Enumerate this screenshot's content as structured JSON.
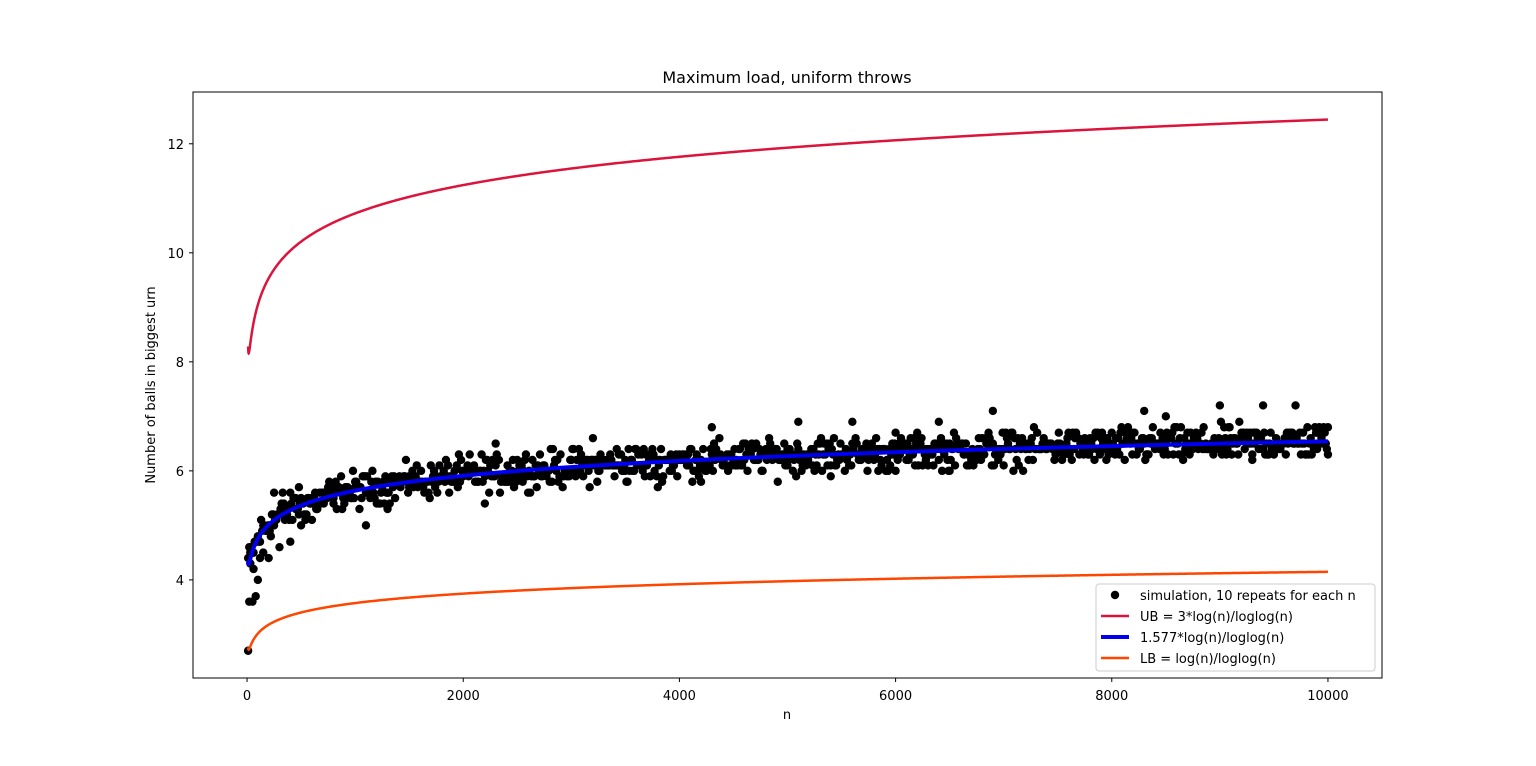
{
  "chart_data": {
    "type": "scatter",
    "title": "Maximum load, uniform throws",
    "xlabel": "n",
    "ylabel": "Number of balls in biggest urn",
    "xlim": [
      -500,
      10500
    ],
    "ylim": [
      2.2,
      12.95
    ],
    "xticks": [
      0,
      2000,
      4000,
      6000,
      8000,
      10000
    ],
    "yticks": [
      4,
      6,
      8,
      10,
      12
    ],
    "grid": false,
    "legend_position": "lower-right",
    "series": [
      {
        "name": "simulation, 10 repeats for each n",
        "kind": "scatter",
        "color": "#000000",
        "description": "Simulated maximum load, about 1000 points for n from 10 to 10000",
        "sample_points": [
          [
            10,
            2.7
          ],
          [
            20,
            3.6
          ],
          [
            30,
            4.3
          ],
          [
            50,
            3.6
          ],
          [
            60,
            4.2
          ],
          [
            80,
            3.7
          ],
          [
            100,
            4.0
          ],
          [
            120,
            4.4
          ],
          [
            150,
            4.5
          ],
          [
            200,
            4.4
          ],
          [
            230,
            5.2
          ],
          [
            250,
            5.6
          ],
          [
            300,
            4.6
          ],
          [
            330,
            5.6
          ],
          [
            400,
            4.7
          ],
          [
            450,
            5.5
          ],
          [
            480,
            5.7
          ],
          [
            500,
            5.0
          ],
          [
            600,
            5.1
          ],
          [
            700,
            5.6
          ],
          [
            800,
            5.4
          ],
          [
            1000,
            5.8
          ],
          [
            1100,
            5.0
          ],
          [
            1300,
            5.3
          ],
          [
            1500,
            5.9
          ],
          [
            2000,
            5.9
          ],
          [
            2200,
            5.4
          ],
          [
            2300,
            6.5
          ],
          [
            2500,
            6.2
          ],
          [
            3000,
            6.2
          ],
          [
            3200,
            6.6
          ],
          [
            3500,
            6.0
          ],
          [
            3800,
            5.7
          ],
          [
            4000,
            6.3
          ],
          [
            4200,
            5.8
          ],
          [
            4300,
            6.8
          ],
          [
            4500,
            6.2
          ],
          [
            5000,
            6.4
          ],
          [
            5100,
            6.9
          ],
          [
            5400,
            5.9
          ],
          [
            5600,
            6.9
          ],
          [
            6000,
            6.0
          ],
          [
            6400,
            6.9
          ],
          [
            6500,
            6.0
          ],
          [
            6900,
            7.1
          ],
          [
            7000,
            6.1
          ],
          [
            7500,
            6.5
          ],
          [
            8000,
            6.4
          ],
          [
            8300,
            7.1
          ],
          [
            8500,
            7.0
          ],
          [
            9000,
            7.2
          ],
          [
            9300,
            6.2
          ],
          [
            9400,
            7.2
          ],
          [
            9600,
            6.6
          ],
          [
            9700,
            7.2
          ],
          [
            9900,
            6.7
          ],
          [
            10000,
            6.8
          ]
        ]
      },
      {
        "name": "UB = 3*log(n)/loglog(n)",
        "kind": "line",
        "formula": "3*log(n)/loglog(n)",
        "color": "#dc143c",
        "x_range": [
          10,
          10000
        ]
      },
      {
        "name": "1.577*log(n)/loglog(n)",
        "kind": "line",
        "formula": "1.577*log(n)/loglog(n)",
        "color": "#0000ee",
        "x_range": [
          10,
          10000
        ]
      },
      {
        "name": "LB = log(n)/loglog(n)",
        "kind": "line",
        "formula": "log(n)/loglog(n)",
        "color": "#ff4500",
        "x_range": [
          10,
          10000
        ]
      }
    ]
  }
}
